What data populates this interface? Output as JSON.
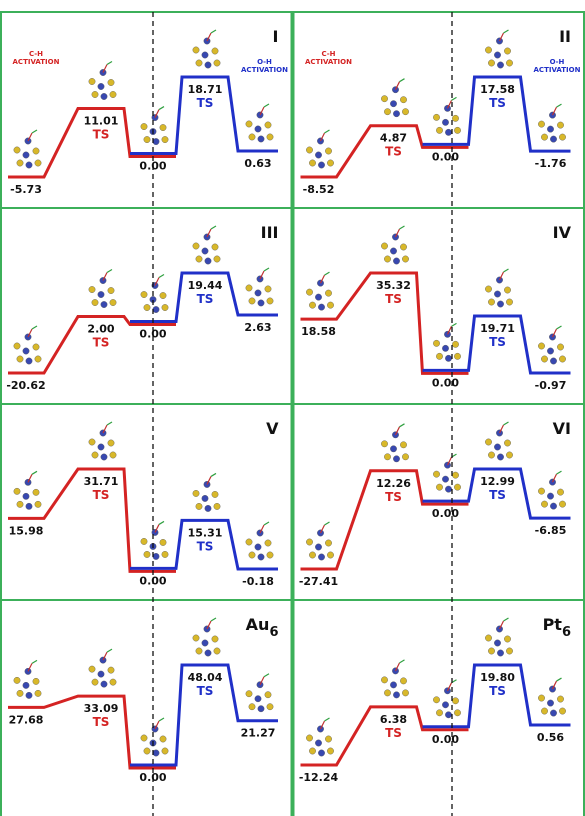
{
  "panels": [
    {
      "label": "I",
      "activation": [
        "C-H",
        "ACTIVATION",
        "O-H",
        "ACTIVATION"
      ],
      "levels": [
        {
          "value": "-5.73"
        },
        {
          "value": "11.01",
          "tag": "TS"
        },
        {
          "value": "0.00"
        },
        {
          "value": "18.71",
          "tag": "TS"
        },
        {
          "value": "0.63"
        }
      ]
    },
    {
      "label": "II",
      "activation": [
        "C-H",
        "ACTIVATION",
        "O-H",
        "ACTIVATION"
      ],
      "levels": [
        {
          "value": "-8.52"
        },
        {
          "value": "4.87",
          "tag": "TS"
        },
        {
          "value": "0.00"
        },
        {
          "value": "17.58",
          "tag": "TS"
        },
        {
          "value": "-1.76"
        }
      ]
    },
    {
      "label": "III",
      "levels": [
        {
          "value": "-20.62"
        },
        {
          "value": "2.00",
          "tag": "TS"
        },
        {
          "value": "0.00"
        },
        {
          "value": "19.44",
          "tag": "TS"
        },
        {
          "value": "2.63"
        }
      ]
    },
    {
      "label": "IV",
      "levels": [
        {
          "value": "18.58"
        },
        {
          "value": "35.32",
          "tag": "TS"
        },
        {
          "value": "0.00"
        },
        {
          "value": "19.71",
          "tag": "TS"
        },
        {
          "value": "-0.97"
        }
      ]
    },
    {
      "label": "V",
      "levels": [
        {
          "value": "15.98"
        },
        {
          "value": "31.71",
          "tag": "TS"
        },
        {
          "value": "0.00"
        },
        {
          "value": "15.31",
          "tag": "TS"
        },
        {
          "value": "-0.18"
        }
      ]
    },
    {
      "label": "VI",
      "levels": [
        {
          "value": "-27.41"
        },
        {
          "value": "12.26",
          "tag": "TS"
        },
        {
          "value": "0.00"
        },
        {
          "value": "12.99",
          "tag": "TS"
        },
        {
          "value": "-6.85"
        }
      ]
    },
    {
      "label": "Au",
      "label_sub": "6",
      "levels": [
        {
          "value": "27.68"
        },
        {
          "value": "33.09",
          "tag": "TS"
        },
        {
          "value": "0.00"
        },
        {
          "value": "48.04",
          "tag": "TS"
        },
        {
          "value": "21.27"
        }
      ]
    },
    {
      "label": "Pt",
      "label_sub": "6",
      "levels": [
        {
          "value": "-12.24"
        },
        {
          "value": "6.38",
          "tag": "TS"
        },
        {
          "value": "0.00"
        },
        {
          "value": "19.80",
          "tag": "TS"
        },
        {
          "value": "0.56"
        }
      ]
    }
  ]
}
